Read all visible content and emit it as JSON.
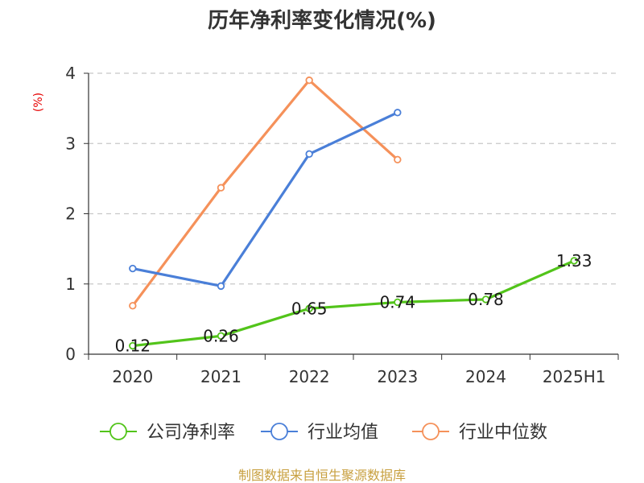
{
  "chart_data": {
    "type": "line",
    "title": "历年净利率变化情况(%)",
    "ylabel": "(%)",
    "ylim": [
      0,
      4
    ],
    "yticks": [
      0,
      1,
      2,
      3,
      4
    ],
    "grid": true,
    "legend_position": "bottom",
    "categories": [
      "2020",
      "2021",
      "2022",
      "2023",
      "2024",
      "2025H1"
    ],
    "series": [
      {
        "name": "公司净利率",
        "color": "#52c41a",
        "values": [
          0.12,
          0.26,
          0.65,
          0.74,
          0.78,
          1.33
        ],
        "labels": [
          "0.12",
          "0.26",
          "0.65",
          "0.74",
          "0.78",
          "1.33"
        ],
        "show_labels": true
      },
      {
        "name": "行业均值",
        "color": "#4a7fd8",
        "values": [
          1.22,
          0.97,
          2.85,
          3.44,
          null,
          null
        ],
        "show_labels": false
      },
      {
        "name": "行业中位数",
        "color": "#f5915a",
        "values": [
          0.69,
          2.37,
          3.9,
          2.77,
          null,
          null
        ],
        "show_labels": false
      }
    ]
  },
  "footer": {
    "source": "制图数据来自恒生聚源数据库"
  }
}
